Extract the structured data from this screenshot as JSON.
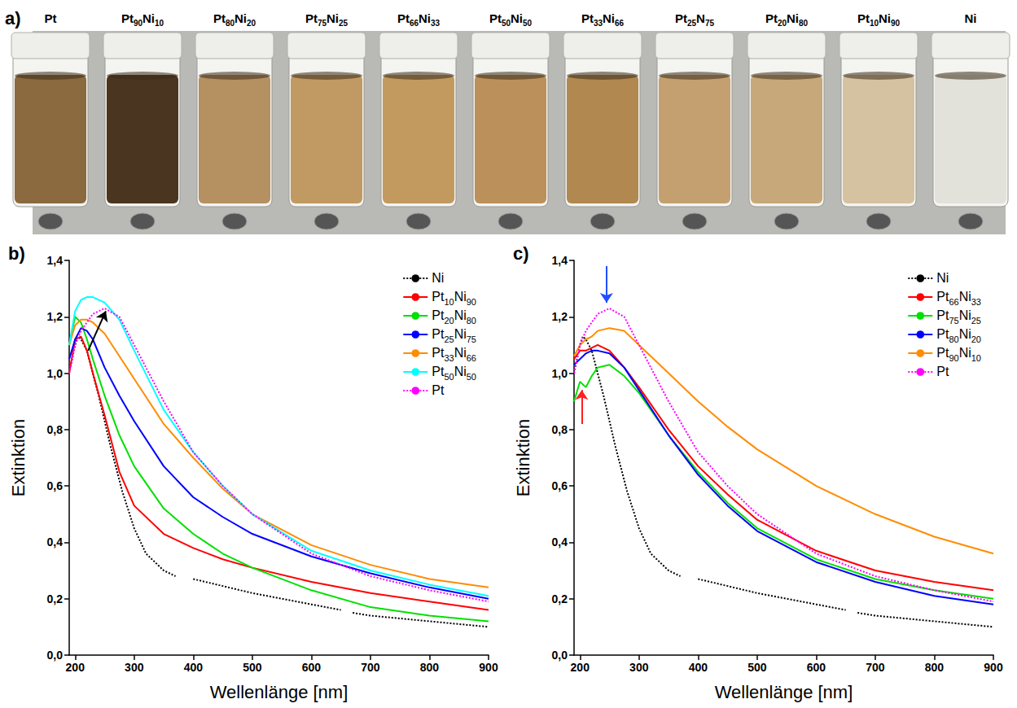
{
  "photo": {
    "label": "a)",
    "samples": [
      "Pt",
      "Pt90Ni10",
      "Pt80Ni20",
      "Pt75Ni25",
      "Pt66Ni33",
      "Pt50Ni50",
      "Pt33Ni66",
      "Pt25N75",
      "Pt20Ni80",
      "Pt10Ni90",
      "Ni"
    ],
    "colors": [
      "#8a6a3e",
      "#4a3520",
      "#b59060",
      "#c09a62",
      "#c29a60",
      "#bb905a",
      "#b08850",
      "#c4a070",
      "#c7a87a",
      "#d5c2a0",
      "#e2e2da"
    ]
  },
  "chart_data": [
    {
      "type": "line",
      "panel": "b)",
      "x_label": "Wellenlänge [nm]",
      "y_label": "Extinktion",
      "xlim": [
        190,
        900
      ],
      "xticks": [
        200,
        300,
        400,
        500,
        600,
        700,
        800,
        900
      ],
      "ylim": [
        0,
        1.4
      ],
      "yticks": [
        {
          "value": 0,
          "label": "0,0"
        },
        {
          "value": 0.2,
          "label": "0,2"
        },
        {
          "value": 0.4,
          "label": "0,4"
        },
        {
          "value": 0.6,
          "label": "0,6"
        },
        {
          "value": 0.8,
          "label": "0,8"
        },
        {
          "value": 1.0,
          "label": "1,0"
        },
        {
          "value": 1.2,
          "label": "1,2"
        },
        {
          "value": 1.4,
          "label": "1,4"
        }
      ],
      "grid": false,
      "legend": "upper right",
      "marker": "none",
      "arrows": [
        {
          "from": [
            222,
            1.08
          ],
          "to": [
            252,
            1.22
          ],
          "color": "#000000"
        }
      ],
      "series": [
        {
          "name": "Ni",
          "color": "#000000",
          "line_style": "dotted",
          "x": [
            190,
            200,
            205,
            210,
            220,
            240,
            260,
            280,
            300,
            320,
            350,
            370,
            380,
            400,
            450,
            500,
            550,
            600,
            650,
            660,
            670,
            700,
            750,
            800,
            850,
            900
          ],
          "values": [
            1.0,
            1.1,
            1.13,
            1.12,
            1.08,
            0.92,
            0.74,
            0.58,
            0.45,
            0.36,
            0.3,
            0.28,
            null,
            0.27,
            0.245,
            0.22,
            0.2,
            0.18,
            0.16,
            null,
            0.15,
            0.14,
            0.13,
            0.12,
            0.11,
            0.1
          ]
        },
        {
          "name": "Pt10Ni90",
          "color": "#ff0000",
          "line_style": "solid",
          "x": [
            190,
            200,
            210,
            220,
            230,
            250,
            275,
            300,
            350,
            400,
            450,
            500,
            600,
            700,
            800,
            900
          ],
          "values": [
            1.0,
            1.12,
            1.13,
            1.08,
            1.0,
            0.85,
            0.65,
            0.53,
            0.43,
            0.38,
            0.34,
            0.31,
            0.26,
            0.22,
            0.19,
            0.16
          ]
        },
        {
          "name": "Pt20Ni80",
          "color": "#00e000",
          "line_style": "solid",
          "x": [
            190,
            200,
            210,
            220,
            230,
            250,
            275,
            300,
            350,
            400,
            450,
            500,
            600,
            700,
            800,
            900
          ],
          "values": [
            1.1,
            1.2,
            1.18,
            1.12,
            1.05,
            0.92,
            0.78,
            0.67,
            0.52,
            0.43,
            0.36,
            0.31,
            0.23,
            0.17,
            0.14,
            0.12
          ]
        },
        {
          "name": "Pt25Ni75",
          "color": "#0000ff",
          "line_style": "solid",
          "x": [
            190,
            200,
            210,
            220,
            230,
            250,
            275,
            300,
            350,
            400,
            450,
            500,
            600,
            700,
            800,
            900
          ],
          "values": [
            1.05,
            1.12,
            1.16,
            1.15,
            1.12,
            1.02,
            0.92,
            0.83,
            0.67,
            0.56,
            0.49,
            0.43,
            0.35,
            0.29,
            0.24,
            0.2
          ]
        },
        {
          "name": "Pt33Ni66",
          "color": "#ff8c00",
          "line_style": "solid",
          "x": [
            190,
            200,
            210,
            220,
            230,
            250,
            275,
            300,
            350,
            400,
            450,
            500,
            600,
            700,
            800,
            900
          ],
          "values": [
            1.1,
            1.17,
            1.19,
            1.19,
            1.18,
            1.14,
            1.06,
            0.98,
            0.82,
            0.7,
            0.59,
            0.5,
            0.39,
            0.32,
            0.27,
            0.24
          ]
        },
        {
          "name": "Pt50Ni50",
          "color": "#00ffff",
          "line_style": "solid",
          "x": [
            190,
            200,
            210,
            220,
            230,
            250,
            275,
            300,
            350,
            400,
            450,
            500,
            600,
            700,
            800,
            900
          ],
          "values": [
            1.1,
            1.22,
            1.26,
            1.27,
            1.27,
            1.25,
            1.19,
            1.08,
            0.87,
            0.72,
            0.6,
            0.5,
            0.37,
            0.3,
            0.25,
            0.21
          ]
        },
        {
          "name": "Pt",
          "color": "#ff00ff",
          "line_style": "dotted",
          "x": [
            190,
            200,
            210,
            220,
            230,
            250,
            275,
            300,
            350,
            400,
            450,
            500,
            600,
            700,
            800,
            900
          ],
          "values": [
            1.0,
            1.1,
            1.15,
            1.18,
            1.21,
            1.23,
            1.2,
            1.1,
            0.9,
            0.72,
            0.6,
            0.5,
            0.36,
            0.28,
            0.23,
            0.19
          ]
        }
      ]
    },
    {
      "type": "line",
      "panel": "c)",
      "x_label": "Wellenlänge [nm]",
      "y_label": "Extinktion",
      "xlim": [
        190,
        900
      ],
      "xticks": [
        200,
        300,
        400,
        500,
        600,
        700,
        800,
        900
      ],
      "ylim": [
        0,
        1.4
      ],
      "yticks": [
        {
          "value": 0,
          "label": "0,0"
        },
        {
          "value": 0.2,
          "label": "0,2"
        },
        {
          "value": 0.4,
          "label": "0,4"
        },
        {
          "value": 0.6,
          "label": "0,6"
        },
        {
          "value": 0.8,
          "label": "0,8"
        },
        {
          "value": 1.0,
          "label": "1,0"
        },
        {
          "value": 1.2,
          "label": "1,2"
        },
        {
          "value": 1.4,
          "label": "1,4"
        }
      ],
      "grid": false,
      "legend": "upper right",
      "marker": "none",
      "arrows": [
        {
          "from": [
            245,
            1.38
          ],
          "to": [
            245,
            1.25
          ],
          "color": "#1f4fff"
        },
        {
          "from": [
            203,
            0.82
          ],
          "to": [
            203,
            0.94
          ],
          "color": "#ff2020"
        }
      ],
      "series": [
        {
          "name": "Ni",
          "color": "#000000",
          "line_style": "dotted",
          "x": [
            190,
            200,
            205,
            210,
            220,
            240,
            260,
            280,
            300,
            320,
            350,
            370,
            380,
            400,
            450,
            500,
            550,
            600,
            650,
            660,
            670,
            700,
            750,
            800,
            850,
            900
          ],
          "values": [
            1.0,
            1.1,
            1.13,
            1.12,
            1.08,
            0.92,
            0.74,
            0.58,
            0.45,
            0.36,
            0.3,
            0.28,
            null,
            0.27,
            0.245,
            0.22,
            0.2,
            0.18,
            0.16,
            null,
            0.15,
            0.14,
            0.13,
            0.12,
            0.11,
            0.1
          ]
        },
        {
          "name": "Pt66Ni33",
          "color": "#ff0000",
          "line_style": "solid",
          "x": [
            190,
            200,
            210,
            220,
            230,
            250,
            275,
            300,
            350,
            400,
            450,
            500,
            600,
            700,
            800,
            900
          ],
          "values": [
            1.05,
            1.08,
            1.08,
            1.09,
            1.1,
            1.08,
            1.02,
            0.95,
            0.8,
            0.67,
            0.57,
            0.48,
            0.37,
            0.3,
            0.26,
            0.23
          ]
        },
        {
          "name": "Pt75Ni25",
          "color": "#00e000",
          "line_style": "solid",
          "x": [
            190,
            200,
            210,
            220,
            230,
            250,
            275,
            300,
            350,
            400,
            450,
            500,
            600,
            700,
            800,
            900
          ],
          "values": [
            0.9,
            0.97,
            0.95,
            0.99,
            1.02,
            1.03,
            0.99,
            0.93,
            0.78,
            0.65,
            0.54,
            0.45,
            0.34,
            0.27,
            0.23,
            0.2
          ]
        },
        {
          "name": "Pt80Ni20",
          "color": "#0000ff",
          "line_style": "solid",
          "x": [
            190,
            200,
            210,
            220,
            230,
            250,
            275,
            300,
            350,
            400,
            450,
            500,
            600,
            700,
            800,
            900
          ],
          "values": [
            1.03,
            1.05,
            1.07,
            1.08,
            1.08,
            1.07,
            1.02,
            0.94,
            0.78,
            0.64,
            0.53,
            0.44,
            0.33,
            0.26,
            0.21,
            0.18
          ]
        },
        {
          "name": "Pt90Ni10",
          "color": "#ff8c00",
          "line_style": "solid",
          "x": [
            190,
            200,
            210,
            220,
            230,
            250,
            275,
            300,
            350,
            400,
            450,
            500,
            600,
            700,
            800,
            900
          ],
          "values": [
            1.06,
            1.1,
            1.12,
            1.13,
            1.15,
            1.16,
            1.15,
            1.1,
            1.0,
            0.9,
            0.81,
            0.73,
            0.6,
            0.5,
            0.42,
            0.36
          ]
        },
        {
          "name": "Pt",
          "color": "#ff00ff",
          "line_style": "dotted",
          "x": [
            190,
            200,
            210,
            220,
            230,
            250,
            275,
            300,
            350,
            400,
            450,
            500,
            600,
            700,
            800,
            900
          ],
          "values": [
            1.0,
            1.1,
            1.15,
            1.18,
            1.21,
            1.23,
            1.2,
            1.1,
            0.9,
            0.72,
            0.6,
            0.5,
            0.36,
            0.28,
            0.23,
            0.19
          ]
        }
      ]
    }
  ]
}
